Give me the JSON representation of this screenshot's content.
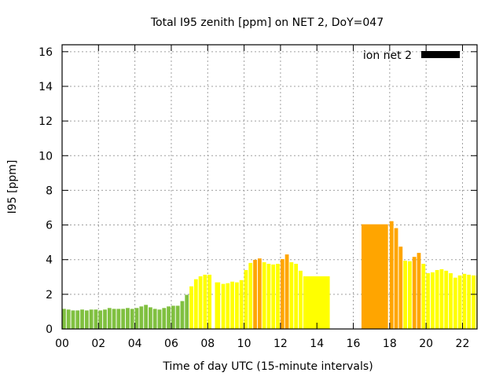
{
  "chart_data": {
    "type": "bar",
    "title": "Total I95 zenith [ppm] on NET 2, DoY=047",
    "xlabel": "Time of day UTC (15-minute intervals)",
    "ylabel": "I95 [ppm]",
    "xlim": [
      0,
      22.8
    ],
    "ylim": [
      0,
      16.4
    ],
    "grid": true,
    "legend": {
      "label": "ion net 2",
      "color": "#000000",
      "placement": "top-right"
    },
    "x_ticks": [
      0,
      2,
      4,
      6,
      8,
      10,
      12,
      14,
      16,
      18,
      20,
      22
    ],
    "x_tick_labels": [
      "00",
      "02",
      "04",
      "06",
      "08",
      "10",
      "12",
      "14",
      "16",
      "18",
      "20",
      "22"
    ],
    "y_ticks": [
      0,
      2,
      4,
      6,
      8,
      10,
      12,
      14,
      16
    ],
    "y_tick_labels": [
      "0",
      "2",
      "4",
      "6",
      "8",
      "10",
      "12",
      "14",
      "16"
    ],
    "colors": {
      "green": "#80c040",
      "yellow": "#ffff00",
      "orange": "#ffa500"
    },
    "bars": [
      {
        "t": 0.0,
        "v": 1.16,
        "c": "green"
      },
      {
        "t": 0.25,
        "v": 1.12,
        "c": "green"
      },
      {
        "t": 0.5,
        "v": 1.07,
        "c": "green"
      },
      {
        "t": 0.75,
        "v": 1.07,
        "c": "green"
      },
      {
        "t": 1.0,
        "v": 1.12,
        "c": "green"
      },
      {
        "t": 1.25,
        "v": 1.07,
        "c": "green"
      },
      {
        "t": 1.5,
        "v": 1.12,
        "c": "green"
      },
      {
        "t": 1.75,
        "v": 1.12,
        "c": "green"
      },
      {
        "t": 2.0,
        "v": 1.07,
        "c": "green"
      },
      {
        "t": 2.25,
        "v": 1.12,
        "c": "green"
      },
      {
        "t": 2.5,
        "v": 1.21,
        "c": "green"
      },
      {
        "t": 2.75,
        "v": 1.16,
        "c": "green"
      },
      {
        "t": 3.0,
        "v": 1.16,
        "c": "green"
      },
      {
        "t": 3.25,
        "v": 1.16,
        "c": "green"
      },
      {
        "t": 3.5,
        "v": 1.21,
        "c": "green"
      },
      {
        "t": 3.75,
        "v": 1.16,
        "c": "green"
      },
      {
        "t": 4.0,
        "v": 1.21,
        "c": "green"
      },
      {
        "t": 4.25,
        "v": 1.3,
        "c": "green"
      },
      {
        "t": 4.5,
        "v": 1.39,
        "c": "green"
      },
      {
        "t": 4.75,
        "v": 1.25,
        "c": "green"
      },
      {
        "t": 5.0,
        "v": 1.16,
        "c": "green"
      },
      {
        "t": 5.25,
        "v": 1.12,
        "c": "green"
      },
      {
        "t": 5.5,
        "v": 1.21,
        "c": "green"
      },
      {
        "t": 5.75,
        "v": 1.3,
        "c": "green"
      },
      {
        "t": 6.0,
        "v": 1.34,
        "c": "green"
      },
      {
        "t": 6.25,
        "v": 1.34,
        "c": "green"
      },
      {
        "t": 6.5,
        "v": 1.61,
        "c": "green"
      },
      {
        "t": 6.75,
        "v": 1.97,
        "c": "green"
      },
      {
        "t": 7.0,
        "v": 2.46,
        "c": "yellow"
      },
      {
        "t": 7.25,
        "v": 2.87,
        "c": "yellow"
      },
      {
        "t": 7.5,
        "v": 3.04,
        "c": "yellow"
      },
      {
        "t": 7.75,
        "v": 3.13,
        "c": "yellow"
      },
      {
        "t": 8.0,
        "v": 3.13,
        "c": "yellow"
      },
      {
        "t": 8.4,
        "v": 2.69,
        "c": "yellow",
        "dur": 0.33
      },
      {
        "t": 8.75,
        "v": 2.6,
        "c": "yellow"
      },
      {
        "t": 9.0,
        "v": 2.64,
        "c": "yellow"
      },
      {
        "t": 9.25,
        "v": 2.73,
        "c": "yellow"
      },
      {
        "t": 9.5,
        "v": 2.69,
        "c": "yellow"
      },
      {
        "t": 9.75,
        "v": 2.82,
        "c": "yellow"
      },
      {
        "t": 10.0,
        "v": 3.4,
        "c": "yellow"
      },
      {
        "t": 10.25,
        "v": 3.81,
        "c": "yellow"
      },
      {
        "t": 10.5,
        "v": 3.99,
        "c": "orange"
      },
      {
        "t": 10.75,
        "v": 4.07,
        "c": "orange"
      },
      {
        "t": 11.0,
        "v": 3.85,
        "c": "yellow"
      },
      {
        "t": 11.25,
        "v": 3.76,
        "c": "yellow"
      },
      {
        "t": 11.5,
        "v": 3.72,
        "c": "yellow"
      },
      {
        "t": 11.75,
        "v": 3.76,
        "c": "yellow"
      },
      {
        "t": 12.0,
        "v": 4.03,
        "c": "orange"
      },
      {
        "t": 12.25,
        "v": 4.3,
        "c": "orange"
      },
      {
        "t": 12.5,
        "v": 3.85,
        "c": "yellow"
      },
      {
        "t": 12.75,
        "v": 3.76,
        "c": "yellow"
      },
      {
        "t": 13.0,
        "v": 3.36,
        "c": "yellow"
      },
      {
        "t": 13.25,
        "v": 3.04,
        "c": "yellow",
        "dur": 1.5
      },
      {
        "t": 16.45,
        "v": 6.04,
        "c": "orange",
        "dur": 1.5
      },
      {
        "t": 18.0,
        "v": 6.22,
        "c": "orange"
      },
      {
        "t": 18.25,
        "v": 5.82,
        "c": "orange"
      },
      {
        "t": 18.5,
        "v": 4.75,
        "c": "orange"
      },
      {
        "t": 18.75,
        "v": 3.94,
        "c": "yellow"
      },
      {
        "t": 19.0,
        "v": 3.91,
        "c": "yellow"
      },
      {
        "t": 19.25,
        "v": 4.16,
        "c": "orange"
      },
      {
        "t": 19.5,
        "v": 4.39,
        "c": "orange"
      },
      {
        "t": 19.75,
        "v": 3.76,
        "c": "yellow"
      },
      {
        "t": 20.0,
        "v": 3.22,
        "c": "yellow"
      },
      {
        "t": 20.25,
        "v": 3.27,
        "c": "yellow"
      },
      {
        "t": 20.5,
        "v": 3.4,
        "c": "yellow"
      },
      {
        "t": 20.75,
        "v": 3.45,
        "c": "yellow"
      },
      {
        "t": 21.0,
        "v": 3.36,
        "c": "yellow"
      },
      {
        "t": 21.25,
        "v": 3.22,
        "c": "yellow"
      },
      {
        "t": 21.5,
        "v": 2.96,
        "c": "yellow"
      },
      {
        "t": 21.75,
        "v": 3.09,
        "c": "yellow"
      },
      {
        "t": 22.0,
        "v": 3.18,
        "c": "yellow"
      },
      {
        "t": 22.25,
        "v": 3.13,
        "c": "yellow"
      },
      {
        "t": 22.5,
        "v": 3.09,
        "c": "yellow"
      },
      {
        "t": 22.75,
        "v": 3.09,
        "c": "yellow"
      }
    ]
  }
}
